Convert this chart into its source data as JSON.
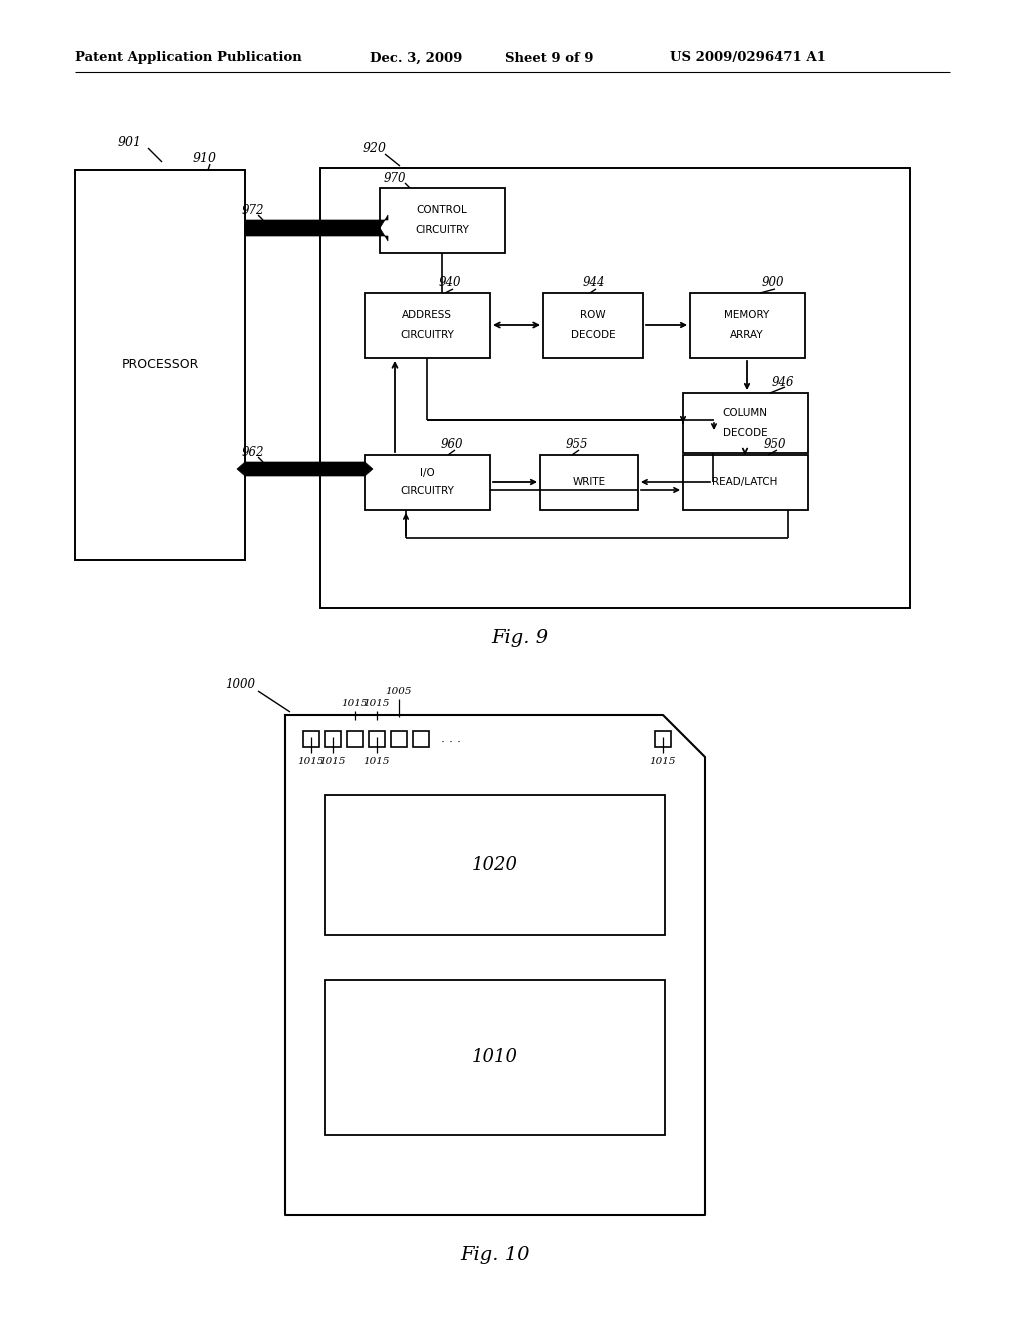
{
  "bg_color": "#ffffff",
  "header_text": "Patent Application Publication",
  "header_date": "Dec. 3, 2009",
  "header_sheet": "Sheet 9 of 9",
  "header_patent": "US 2009/0296471 A1",
  "fig9_caption": "Fig. 9",
  "fig10_caption": "Fig. 10"
}
